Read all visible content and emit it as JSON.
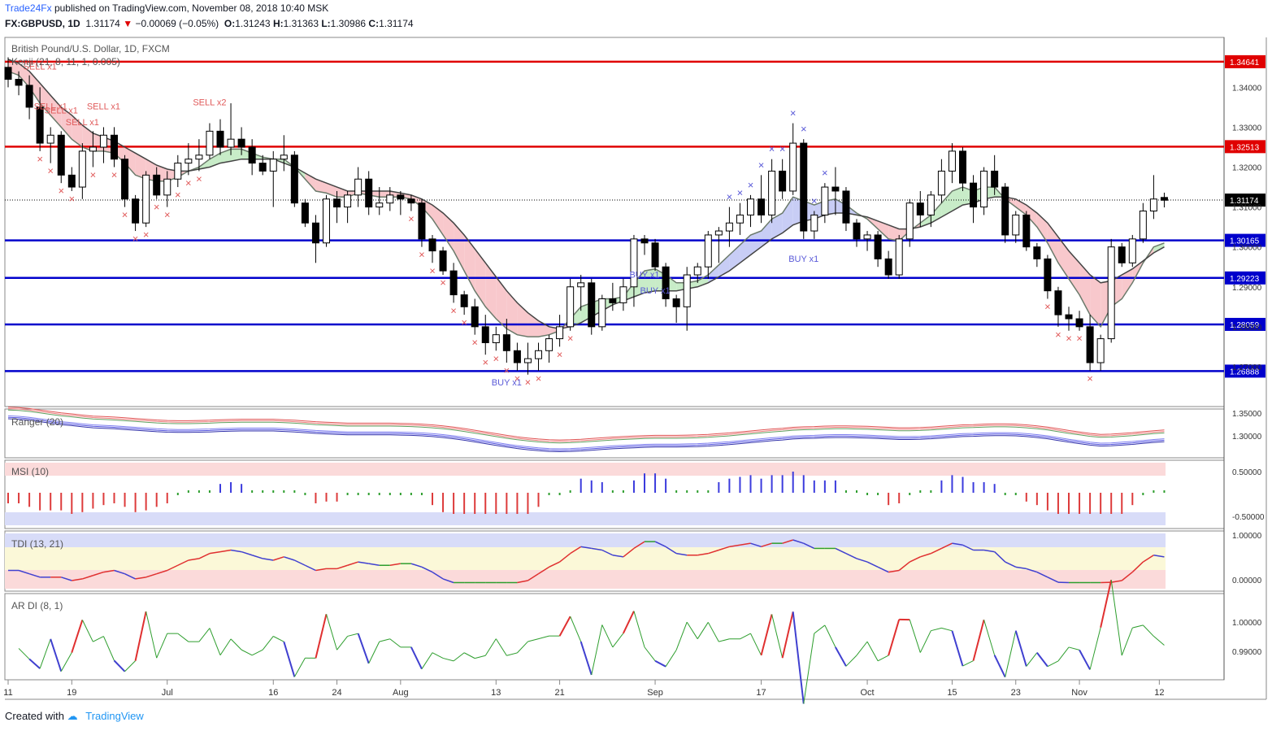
{
  "header": {
    "publisher": "Trade24Fx",
    "published_text": "published on TradingView.com, November 08, 2018 10:40 MSK",
    "symbol": "FX:GBPUSD, 1D",
    "last": "1.31174",
    "change": "−0.00069 (−0.05%)",
    "O": "1.31243",
    "H": "1.31363",
    "L": "1.30986",
    "C": "1.31174",
    "instrument": "British Pound/U.S. Dollar, 1D, FXCM",
    "indicator": "Kenji (21, 8, 11, 1, 0.005)"
  },
  "footer": {
    "created_with": "Created with",
    "brand": "TradingView"
  },
  "colors": {
    "bull": "#ffffff",
    "bear": "#000000",
    "resistance": "#e00000",
    "support": "#0000cc",
    "sell": "#e05a5a",
    "buy": "#5a5ad8",
    "cloud_bear": "#f8c8cc",
    "cloud_bull": "#c8ecc8",
    "cloud_buy": "#c8cdf5"
  },
  "chart_data": [
    {
      "type": "candlestick",
      "title": "British Pound/U.S. Dollar, 1D, FXCM",
      "ylim": [
        1.26,
        1.3525
      ],
      "x_ticks": [
        "11",
        "19",
        "Jul",
        "16",
        "24",
        "Aug",
        "13",
        "21",
        "Sep",
        "17",
        "Oct",
        "15",
        "23",
        "Nov",
        "12"
      ],
      "y_ticks": [
        "1.34000",
        "1.33000",
        "1.32000",
        "1.31000",
        "1.30000",
        "1.29000",
        "1.28000",
        "1.27000"
      ],
      "current_price": "1.31174",
      "horizontal_levels": [
        {
          "value": "1.34641",
          "color": "resistance"
        },
        {
          "value": "1.32513",
          "color": "resistance"
        },
        {
          "value": "1.30165",
          "color": "support"
        },
        {
          "value": "1.29223",
          "color": "support"
        },
        {
          "value": "1.28059",
          "color": "support"
        },
        {
          "value": "1.26888",
          "color": "support"
        }
      ],
      "signal_labels": [
        {
          "text": "SELL x1",
          "day": 3
        },
        {
          "text": "SELL x1",
          "day": 4
        },
        {
          "text": "SELL x1",
          "day": 5
        },
        {
          "text": "SELL x1",
          "day": 7
        },
        {
          "text": "SELL x1",
          "day": 9
        },
        {
          "text": "SELL x2",
          "day": 19
        },
        {
          "text": "BUY x1",
          "day": 47
        },
        {
          "text": "BUY x1",
          "day": 61
        },
        {
          "text": "BUY x1",
          "day": 60
        },
        {
          "text": "BUY x1",
          "day": 75
        }
      ],
      "sell_marks": [
        3,
        4,
        5,
        6,
        8,
        10,
        11,
        12,
        13,
        14,
        15,
        16,
        17,
        18,
        38,
        39,
        40,
        41,
        42,
        43,
        44,
        45,
        46,
        47,
        48,
        49,
        50,
        52,
        53,
        98,
        99,
        100,
        101,
        102
      ],
      "buy_marks": [
        68,
        69,
        70,
        71,
        72,
        73,
        74,
        75,
        76,
        77
      ],
      "ohlc": [
        [
          1.345,
          1.3475,
          1.34,
          1.342
        ],
        [
          1.342,
          1.344,
          1.338,
          1.3405
        ],
        [
          1.3405,
          1.343,
          1.332,
          1.335
        ],
        [
          1.335,
          1.34,
          1.324,
          1.326
        ],
        [
          1.326,
          1.33,
          1.321,
          1.328
        ],
        [
          1.328,
          1.329,
          1.316,
          1.318
        ],
        [
          1.318,
          1.32,
          1.314,
          1.315
        ],
        [
          1.315,
          1.326,
          1.312,
          1.324
        ],
        [
          1.324,
          1.329,
          1.32,
          1.325
        ],
        [
          1.325,
          1.33,
          1.321,
          1.328
        ],
        [
          1.328,
          1.33,
          1.32,
          1.322
        ],
        [
          1.322,
          1.323,
          1.31,
          1.312
        ],
        [
          1.312,
          1.313,
          1.304,
          1.306
        ],
        [
          1.306,
          1.319,
          1.305,
          1.318
        ],
        [
          1.318,
          1.32,
          1.312,
          1.313
        ],
        [
          1.313,
          1.319,
          1.31,
          1.317
        ],
        [
          1.317,
          1.323,
          1.315,
          1.321
        ],
        [
          1.321,
          1.326,
          1.318,
          1.322
        ],
        [
          1.322,
          1.327,
          1.319,
          1.323
        ],
        [
          1.323,
          1.331,
          1.322,
          1.329
        ],
        [
          1.329,
          1.332,
          1.323,
          1.325
        ],
        [
          1.325,
          1.336,
          1.323,
          1.327
        ],
        [
          1.327,
          1.33,
          1.323,
          1.325
        ],
        [
          1.325,
          1.327,
          1.318,
          1.321
        ],
        [
          1.321,
          1.323,
          1.318,
          1.319
        ],
        [
          1.319,
          1.324,
          1.31,
          1.322
        ],
        [
          1.322,
          1.328,
          1.319,
          1.323
        ],
        [
          1.323,
          1.324,
          1.31,
          1.311
        ],
        [
          1.311,
          1.312,
          1.305,
          1.306
        ],
        [
          1.306,
          1.308,
          1.296,
          1.301
        ],
        [
          1.301,
          1.313,
          1.3,
          1.312
        ],
        [
          1.312,
          1.314,
          1.306,
          1.31
        ],
        [
          1.31,
          1.314,
          1.306,
          1.313
        ],
        [
          1.313,
          1.32,
          1.31,
          1.317
        ],
        [
          1.317,
          1.319,
          1.308,
          1.31
        ],
        [
          1.31,
          1.315,
          1.308,
          1.311
        ],
        [
          1.311,
          1.315,
          1.309,
          1.313
        ],
        [
          1.313,
          1.314,
          1.308,
          1.312
        ],
        [
          1.312,
          1.313,
          1.309,
          1.311
        ],
        [
          1.311,
          1.312,
          1.3,
          1.302
        ],
        [
          1.302,
          1.303,
          1.296,
          1.299
        ],
        [
          1.299,
          1.3,
          1.293,
          1.294
        ],
        [
          1.294,
          1.296,
          1.286,
          1.288
        ],
        [
          1.288,
          1.289,
          1.283,
          1.285
        ],
        [
          1.285,
          1.287,
          1.278,
          1.28
        ],
        [
          1.28,
          1.283,
          1.273,
          1.276
        ],
        [
          1.276,
          1.28,
          1.274,
          1.278
        ],
        [
          1.278,
          1.282,
          1.271,
          1.274
        ],
        [
          1.274,
          1.276,
          1.269,
          1.271
        ],
        [
          1.271,
          1.276,
          1.268,
          1.272
        ],
        [
          1.272,
          1.276,
          1.269,
          1.274
        ],
        [
          1.274,
          1.278,
          1.271,
          1.277
        ],
        [
          1.277,
          1.283,
          1.275,
          1.28
        ],
        [
          1.28,
          1.292,
          1.279,
          1.29
        ],
        [
          1.29,
          1.293,
          1.284,
          1.291
        ],
        [
          1.291,
          1.292,
          1.278,
          1.28
        ],
        [
          1.28,
          1.288,
          1.279,
          1.287
        ],
        [
          1.287,
          1.291,
          1.284,
          1.286
        ],
        [
          1.286,
          1.292,
          1.284,
          1.29
        ],
        [
          1.29,
          1.303,
          1.285,
          1.302
        ],
        [
          1.302,
          1.303,
          1.298,
          1.301
        ],
        [
          1.301,
          1.302,
          1.294,
          1.295
        ],
        [
          1.295,
          1.296,
          1.285,
          1.287
        ],
        [
          1.287,
          1.288,
          1.281,
          1.285
        ],
        [
          1.285,
          1.295,
          1.279,
          1.293
        ],
        [
          1.293,
          1.296,
          1.291,
          1.295
        ],
        [
          1.295,
          1.304,
          1.292,
          1.303
        ],
        [
          1.303,
          1.305,
          1.296,
          1.304
        ],
        [
          1.304,
          1.31,
          1.3,
          1.306
        ],
        [
          1.306,
          1.311,
          1.303,
          1.308
        ],
        [
          1.308,
          1.313,
          1.305,
          1.312
        ],
        [
          1.312,
          1.318,
          1.306,
          1.308
        ],
        [
          1.308,
          1.322,
          1.306,
          1.319
        ],
        [
          1.319,
          1.322,
          1.312,
          1.314
        ],
        [
          1.314,
          1.331,
          1.313,
          1.326
        ],
        [
          1.326,
          1.327,
          1.302,
          1.304
        ],
        [
          1.304,
          1.309,
          1.302,
          1.308
        ],
        [
          1.308,
          1.316,
          1.306,
          1.315
        ],
        [
          1.315,
          1.32,
          1.308,
          1.314
        ],
        [
          1.314,
          1.315,
          1.304,
          1.306
        ],
        [
          1.306,
          1.307,
          1.3,
          1.302
        ],
        [
          1.302,
          1.304,
          1.299,
          1.303
        ],
        [
          1.303,
          1.304,
          1.295,
          1.297
        ],
        [
          1.297,
          1.299,
          1.292,
          1.293
        ],
        [
          1.293,
          1.303,
          1.292,
          1.302
        ],
        [
          1.302,
          1.312,
          1.3,
          1.311
        ],
        [
          1.311,
          1.314,
          1.305,
          1.308
        ],
        [
          1.308,
          1.314,
          1.305,
          1.313
        ],
        [
          1.313,
          1.322,
          1.311,
          1.319
        ],
        [
          1.319,
          1.326,
          1.316,
          1.324
        ],
        [
          1.324,
          1.325,
          1.314,
          1.316
        ],
        [
          1.316,
          1.318,
          1.306,
          1.31
        ],
        [
          1.31,
          1.32,
          1.308,
          1.319
        ],
        [
          1.319,
          1.323,
          1.313,
          1.315
        ],
        [
          1.315,
          1.316,
          1.301,
          1.303
        ],
        [
          1.303,
          1.309,
          1.301,
          1.308
        ],
        [
          1.308,
          1.309,
          1.299,
          1.3
        ],
        [
          1.3,
          1.301,
          1.295,
          1.297
        ],
        [
          1.297,
          1.298,
          1.287,
          1.289
        ],
        [
          1.289,
          1.29,
          1.28,
          1.283
        ],
        [
          1.283,
          1.285,
          1.279,
          1.282
        ],
        [
          1.282,
          1.284,
          1.279,
          1.28
        ],
        [
          1.28,
          1.283,
          1.269,
          1.271
        ],
        [
          1.271,
          1.278,
          1.269,
          1.277
        ],
        [
          1.277,
          1.302,
          1.276,
          1.3
        ],
        [
          1.3,
          1.301,
          1.295,
          1.296
        ],
        [
          1.296,
          1.303,
          1.295,
          1.302
        ],
        [
          1.302,
          1.311,
          1.301,
          1.309
        ],
        [
          1.309,
          1.318,
          1.307,
          1.312
        ],
        [
          1.3124,
          1.3136,
          1.3099,
          1.3117
        ]
      ],
      "kenji_fast": [
        1.344,
        1.343,
        1.34,
        1.336,
        1.333,
        1.33,
        1.327,
        1.325,
        1.324,
        1.324,
        1.3235,
        1.321,
        1.318,
        1.317,
        1.3165,
        1.3165,
        1.3175,
        1.319,
        1.32,
        1.322,
        1.3235,
        1.3245,
        1.3245,
        1.3235,
        1.3225,
        1.322,
        1.322,
        1.32,
        1.317,
        1.314,
        1.3135,
        1.3125,
        1.3125,
        1.3135,
        1.313,
        1.3125,
        1.3125,
        1.3125,
        1.312,
        1.31,
        1.307,
        1.303,
        1.299,
        1.294,
        1.289,
        1.285,
        1.282,
        1.2795,
        1.278,
        1.2775,
        1.2775,
        1.278,
        1.279,
        1.282,
        1.285,
        1.286,
        1.287,
        1.287,
        1.2875,
        1.291,
        1.294,
        1.2945,
        1.293,
        1.291,
        1.291,
        1.2915,
        1.293,
        1.2955,
        1.298,
        1.3005,
        1.303,
        1.304,
        1.307,
        1.3085,
        1.3125,
        1.3115,
        1.3105,
        1.3115,
        1.312,
        1.3105,
        1.3085,
        1.307,
        1.3045,
        1.302,
        1.3015,
        1.304,
        1.306,
        1.308,
        1.311,
        1.314,
        1.315,
        1.314,
        1.315,
        1.315,
        1.312,
        1.31,
        1.308,
        1.305,
        1.301,
        1.296,
        1.292,
        1.288,
        1.283,
        1.28,
        1.285,
        1.287,
        1.291,
        1.296,
        1.3,
        1.301
      ],
      "kenji_slow": [
        1.347,
        1.346,
        1.344,
        1.341,
        1.338,
        1.335,
        1.333,
        1.3305,
        1.3285,
        1.3275,
        1.3265,
        1.325,
        1.3235,
        1.322,
        1.3205,
        1.3195,
        1.319,
        1.319,
        1.3195,
        1.32,
        1.321,
        1.3215,
        1.322,
        1.322,
        1.322,
        1.322,
        1.321,
        1.32,
        1.3185,
        1.317,
        1.316,
        1.315,
        1.314,
        1.314,
        1.314,
        1.314,
        1.314,
        1.3135,
        1.313,
        1.312,
        1.3105,
        1.3085,
        1.306,
        1.303,
        1.2995,
        1.296,
        1.2925,
        1.289,
        1.286,
        1.2835,
        1.2815,
        1.28,
        1.2795,
        1.28,
        1.281,
        1.2825,
        1.284,
        1.2855,
        1.2865,
        1.2875,
        1.2885,
        1.289,
        1.289,
        1.289,
        1.2895,
        1.29,
        1.291,
        1.2925,
        1.294,
        1.296,
        1.298,
        1.3,
        1.302,
        1.3035,
        1.3055,
        1.3065,
        1.307,
        1.308,
        1.3085,
        1.3085,
        1.308,
        1.3075,
        1.3065,
        1.3055,
        1.3045,
        1.3045,
        1.305,
        1.306,
        1.3075,
        1.309,
        1.3105,
        1.311,
        1.312,
        1.3125,
        1.3125,
        1.312,
        1.3105,
        1.3085,
        1.306,
        1.3025,
        1.299,
        1.296,
        1.293,
        1.291,
        1.2915,
        1.293,
        1.2945,
        1.2965,
        1.2985,
        1.3
      ]
    },
    {
      "type": "band",
      "title": "Ranger (20)",
      "y_ticks": [
        "1.35000",
        "1.30000"
      ]
    },
    {
      "type": "histogram",
      "title": "MSI (10)",
      "y_ticks": [
        "0.50000",
        "-0.50000"
      ]
    },
    {
      "type": "line",
      "title": "TDI (13, 21)",
      "y_ticks": [
        "1.00000",
        "0.00000"
      ]
    },
    {
      "type": "line",
      "title": "AR DI (8, 1)",
      "y_ticks": [
        "1.00000",
        "0.99000"
      ]
    }
  ]
}
